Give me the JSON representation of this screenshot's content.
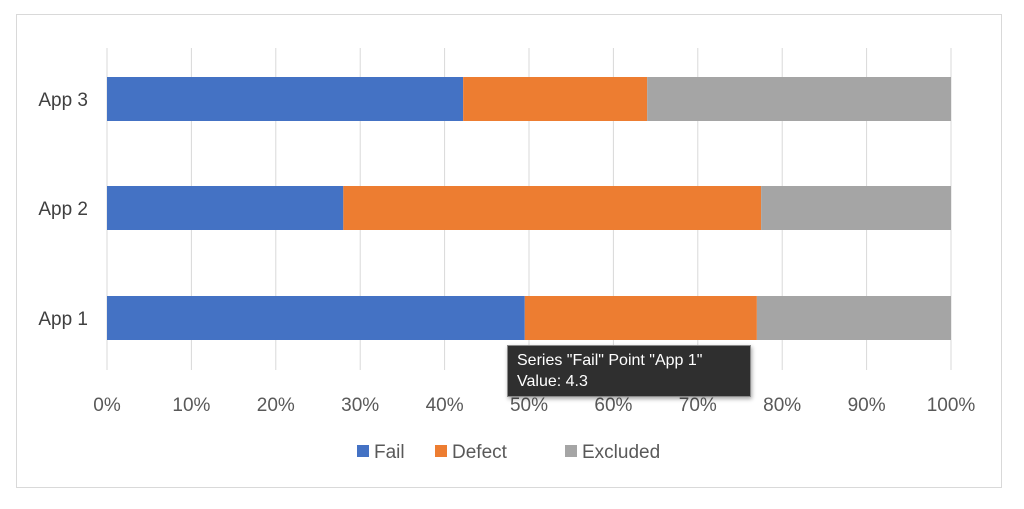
{
  "chart_data": {
    "type": "bar",
    "orientation": "horizontal",
    "stacking": "percent",
    "categories": [
      "App 1",
      "App 2",
      "App 3"
    ],
    "series": [
      {
        "name": "Fail",
        "color": "#4472C4",
        "values": [
          49.5,
          28.0,
          42.2
        ]
      },
      {
        "name": "Defect",
        "color": "#ED7D31",
        "values": [
          27.5,
          49.5,
          21.8
        ]
      },
      {
        "name": "Excluded",
        "color": "#A5A5A5",
        "values": [
          23.0,
          22.5,
          36.0
        ]
      }
    ],
    "xticks": [
      "0%",
      "10%",
      "20%",
      "30%",
      "40%",
      "50%",
      "60%",
      "70%",
      "80%",
      "90%",
      "100%"
    ],
    "xlim": [
      0,
      100
    ],
    "grid": true,
    "legend_position": "bottom"
  },
  "tooltip": {
    "line1": "Series \"Fail\" Point \"App 1\"",
    "line2": "Value: 4.3"
  }
}
